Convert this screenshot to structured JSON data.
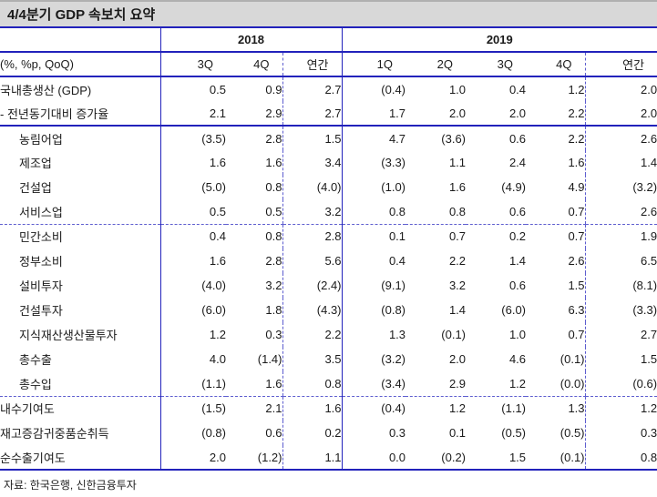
{
  "title": "4/4분기 GDP 속보치 요약",
  "table": {
    "unit_label": "(%, %p, QoQ)",
    "year_groups": [
      {
        "label": "2018",
        "span": 3
      },
      {
        "label": "2019",
        "span": 5
      }
    ],
    "quarter_headers": [
      "3Q",
      "4Q",
      "연간",
      "1Q",
      "2Q",
      "3Q",
      "4Q",
      "연간"
    ],
    "rows": [
      {
        "label": "국내총생산 (GDP)",
        "indent": false,
        "divider": null,
        "values": [
          "0.5",
          "0.9",
          "2.7",
          "(0.4)",
          "1.0",
          "0.4",
          "1.2",
          "2.0"
        ]
      },
      {
        "label": "- 전년동기대비 증가율",
        "indent": false,
        "divider": "solid",
        "values": [
          "2.1",
          "2.9",
          "2.7",
          "1.7",
          "2.0",
          "2.0",
          "2.2",
          "2.0"
        ]
      },
      {
        "label": "농림어업",
        "indent": true,
        "divider": null,
        "values": [
          "(3.5)",
          "2.8",
          "1.5",
          "4.7",
          "(3.6)",
          "0.6",
          "2.2",
          "2.6"
        ]
      },
      {
        "label": "제조업",
        "indent": true,
        "divider": null,
        "values": [
          "1.6",
          "1.6",
          "3.4",
          "(3.3)",
          "1.1",
          "2.4",
          "1.6",
          "1.4"
        ]
      },
      {
        "label": "건설업",
        "indent": true,
        "divider": null,
        "values": [
          "(5.0)",
          "0.8",
          "(4.0)",
          "(1.0)",
          "1.6",
          "(4.9)",
          "4.9",
          "(3.2)"
        ]
      },
      {
        "label": "서비스업",
        "indent": true,
        "divider": "dashed",
        "values": [
          "0.5",
          "0.5",
          "3.2",
          "0.8",
          "0.8",
          "0.6",
          "0.7",
          "2.6"
        ]
      },
      {
        "label": "민간소비",
        "indent": true,
        "divider": null,
        "values": [
          "0.4",
          "0.8",
          "2.8",
          "0.1",
          "0.7",
          "0.2",
          "0.7",
          "1.9"
        ]
      },
      {
        "label": "정부소비",
        "indent": true,
        "divider": null,
        "values": [
          "1.6",
          "2.8",
          "5.6",
          "0.4",
          "2.2",
          "1.4",
          "2.6",
          "6.5"
        ]
      },
      {
        "label": "설비투자",
        "indent": true,
        "divider": null,
        "values": [
          "(4.0)",
          "3.2",
          "(2.4)",
          "(9.1)",
          "3.2",
          "0.6",
          "1.5",
          "(8.1)"
        ]
      },
      {
        "label": "건설투자",
        "indent": true,
        "divider": null,
        "values": [
          "(6.0)",
          "1.8",
          "(4.3)",
          "(0.8)",
          "1.4",
          "(6.0)",
          "6.3",
          "(3.3)"
        ]
      },
      {
        "label": "지식재산생산물투자",
        "indent": true,
        "divider": null,
        "values": [
          "1.2",
          "0.3",
          "2.2",
          "1.3",
          "(0.1)",
          "1.0",
          "0.7",
          "2.7"
        ]
      },
      {
        "label": "총수출",
        "indent": true,
        "divider": null,
        "values": [
          "4.0",
          "(1.4)",
          "3.5",
          "(3.2)",
          "2.0",
          "4.6",
          "(0.1)",
          "1.5"
        ]
      },
      {
        "label": "총수입",
        "indent": true,
        "divider": "dashed",
        "values": [
          "(1.1)",
          "1.6",
          "0.8",
          "(3.4)",
          "2.9",
          "1.2",
          "(0.0)",
          "(0.6)"
        ]
      },
      {
        "label": "내수기여도",
        "indent": false,
        "divider": null,
        "values": [
          "(1.5)",
          "2.1",
          "1.6",
          "(0.4)",
          "1.2",
          "(1.1)",
          "1.3",
          "1.2"
        ]
      },
      {
        "label": "재고증감귀중품순취득",
        "indent": false,
        "divider": null,
        "values": [
          "(0.8)",
          "0.6",
          "0.2",
          "0.3",
          "0.1",
          "(0.5)",
          "(0.5)",
          "0.3"
        ]
      },
      {
        "label": "순수출기여도",
        "indent": false,
        "divider": "solid",
        "values": [
          "2.0",
          "(1.2)",
          "1.1",
          "0.0",
          "(0.2)",
          "1.5",
          "(0.1)",
          "0.8"
        ]
      }
    ]
  },
  "footer": {
    "source": "자료: 한국은행, 신한금융투자"
  },
  "colors": {
    "line_blue": "#2222bb",
    "title_bg": "#d8d8d8",
    "text_color": "#1a1a1a"
  }
}
